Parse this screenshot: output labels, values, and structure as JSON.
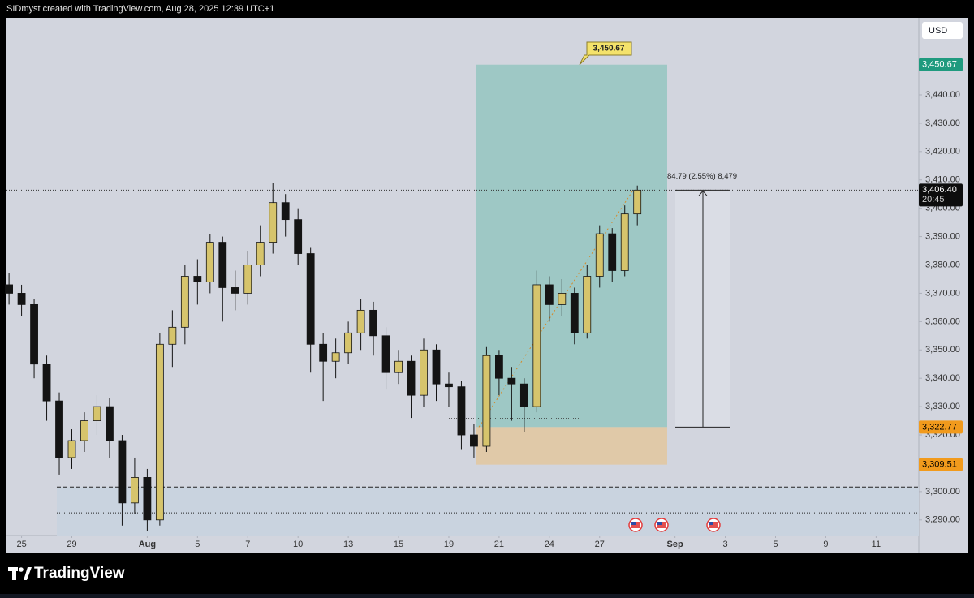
{
  "header": "SIDmyst created with TradingView.com, Aug 28, 2025 12:39 UTC+1",
  "brand": "TradingView",
  "chart_data": {
    "type": "candlestick",
    "currency": "USD",
    "up_color": "#d6c46c",
    "down_color": "#141414",
    "x": [
      -0.5,
      0,
      0.5,
      1,
      1.5,
      2,
      2.5,
      3,
      3.5,
      4,
      4.5,
      5,
      5.5,
      6,
      6.5,
      7,
      7.5,
      8,
      8.5,
      9,
      9.5,
      10,
      10.5,
      11,
      11.5,
      12,
      12.5,
      13,
      13.5,
      14,
      14.5,
      15,
      15.5,
      16,
      16.5,
      17,
      17.5,
      18,
      18.5,
      19,
      19.5,
      20,
      20.5,
      21,
      21.5,
      22,
      22.5,
      23,
      23.5,
      24,
      24.5
    ],
    "open": [
      3373,
      3370,
      3366,
      3345,
      3332,
      3312,
      3318,
      3325,
      3330,
      3318,
      3296,
      3305,
      3290,
      3352,
      3358,
      3376,
      3374,
      3388,
      3372,
      3370,
      3380,
      3388,
      3402,
      3396,
      3384,
      3352,
      3346,
      3349,
      3356,
      3364,
      3355,
      3342,
      3346,
      3334,
      3350,
      3338,
      3337,
      3320,
      3316,
      3348,
      3340,
      3338,
      3330,
      3373,
      3366,
      3370,
      3356,
      3376,
      3391,
      3378,
      3398
    ],
    "high": [
      3377,
      3373,
      3368,
      3348,
      3335,
      3322,
      3328,
      3334,
      3333,
      3320,
      3312,
      3308,
      3356,
      3364,
      3380,
      3382,
      3391,
      3390,
      3378,
      3385,
      3394,
      3409,
      3405,
      3400,
      3386,
      3356,
      3354,
      3360,
      3368,
      3367,
      3358,
      3350,
      3348,
      3354,
      3352,
      3342,
      3339,
      3324,
      3351,
      3350,
      3344,
      3340,
      3378,
      3376,
      3375,
      3372,
      3380,
      3394,
      3393,
      3401,
      3408
    ],
    "low": [
      3366,
      3362,
      3340,
      3325,
      3306,
      3308,
      3314,
      3320,
      3312,
      3288,
      3292,
      3286,
      3288,
      3344,
      3352,
      3366,
      3370,
      3360,
      3364,
      3366,
      3376,
      3384,
      3390,
      3380,
      3342,
      3332,
      3340,
      3345,
      3350,
      3348,
      3336,
      3338,
      3326,
      3330,
      3332,
      3330,
      3315,
      3312,
      3314,
      3334,
      3325,
      3321,
      3328,
      3360,
      3362,
      3352,
      3354,
      3372,
      3374,
      3376,
      3394
    ],
    "close": [
      3370,
      3366,
      3345,
      3332,
      3312,
      3318,
      3325,
      3330,
      3318,
      3296,
      3305,
      3290,
      3352,
      3358,
      3376,
      3374,
      3388,
      3372,
      3370,
      3380,
      3388,
      3402,
      3396,
      3384,
      3352,
      3346,
      3349,
      3356,
      3364,
      3355,
      3342,
      3346,
      3334,
      3350,
      3338,
      3337,
      3320,
      3316,
      3348,
      3340,
      3338,
      3330,
      3373,
      3366,
      3370,
      3356,
      3376,
      3391,
      3378,
      3398,
      3406.4
    ],
    "xlim": [
      -0.6,
      35.7
    ],
    "xticks": [
      {
        "value": 0,
        "label": "25"
      },
      {
        "value": 2,
        "label": "29"
      },
      {
        "value": 5,
        "label": "Aug"
      },
      {
        "value": 7,
        "label": "5"
      },
      {
        "value": 9,
        "label": "7"
      },
      {
        "value": 11,
        "label": "10"
      },
      {
        "value": 13,
        "label": "13"
      },
      {
        "value": 15,
        "label": "15"
      },
      {
        "value": 17,
        "label": "19"
      },
      {
        "value": 19,
        "label": "21"
      },
      {
        "value": 21,
        "label": "24"
      },
      {
        "value": 23,
        "label": "27"
      },
      {
        "value": 26,
        "label": "Sep"
      },
      {
        "value": 28,
        "label": "3"
      },
      {
        "value": 30,
        "label": "5"
      },
      {
        "value": 32,
        "label": "9"
      },
      {
        "value": 34,
        "label": "11"
      }
    ],
    "ylim": [
      3284.5,
      3467.2
    ],
    "yticks": [
      {
        "value": 3290,
        "label": "3,290.00"
      },
      {
        "value": 3300,
        "label": "3,300.00"
      },
      {
        "value": 3310,
        "label": "3,310.00"
      },
      {
        "value": 3320,
        "label": "3,320.00"
      },
      {
        "value": 3330,
        "label": "3,330.00"
      },
      {
        "value": 3340,
        "label": "3,340.00"
      },
      {
        "value": 3350,
        "label": "3,350.00"
      },
      {
        "value": 3360,
        "label": "3,360.00"
      },
      {
        "value": 3370,
        "label": "3,370.00"
      },
      {
        "value": 3380,
        "label": "3,380.00"
      },
      {
        "value": 3390,
        "label": "3,390.00"
      },
      {
        "value": 3400,
        "label": "3,400.00"
      },
      {
        "value": 3410,
        "label": "3,410.00"
      },
      {
        "value": 3420,
        "label": "3,420.00"
      },
      {
        "value": 3430,
        "label": "3,430.00"
      },
      {
        "value": 3440,
        "label": "3,440.00"
      }
    ],
    "target": {
      "value": 3450.67,
      "label": "3,450.67"
    },
    "entry": {
      "value": 3322.77,
      "label": "3,322.77"
    },
    "stop": {
      "value": 3309.51,
      "label": "3,309.51"
    },
    "last": {
      "value": 3406.4,
      "label": "3,406.40"
    },
    "countdown": "20:45",
    "measure": "84.79 (2.55%) 8,479",
    "support_lines": [
      3301.6,
      3292.5
    ]
  }
}
